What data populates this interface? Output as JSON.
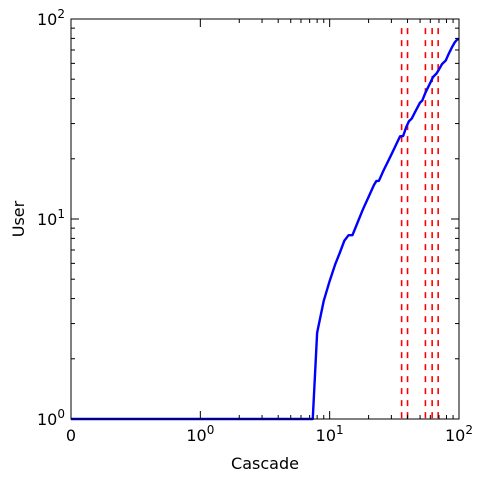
{
  "chart_data": {
    "type": "line",
    "title": "",
    "xlabel": "Cascade",
    "ylabel": "User",
    "xscale": "symlog",
    "yscale": "log",
    "xlim": [
      0,
      100
    ],
    "ylim": [
      1,
      100
    ],
    "grid": false,
    "legend": "none",
    "x_ticks": [
      {
        "value": 0,
        "base": "0",
        "exp": ""
      },
      {
        "value": 1,
        "base": "10",
        "exp": "0"
      },
      {
        "value": 10,
        "base": "10",
        "exp": "1"
      },
      {
        "value": 100,
        "base": "10",
        "exp": "2"
      }
    ],
    "y_ticks": [
      {
        "value": 1,
        "base": "10",
        "exp": "0"
      },
      {
        "value": 10,
        "base": "10",
        "exp": "1"
      },
      {
        "value": 100,
        "base": "10",
        "exp": "2"
      }
    ],
    "series": [
      {
        "color": "#0000ff",
        "points": [
          [
            0,
            1.0
          ],
          [
            7.4,
            1.0
          ],
          [
            8.0,
            2.7
          ],
          [
            9.0,
            3.9
          ],
          [
            10.0,
            4.9
          ],
          [
            11.0,
            5.9
          ],
          [
            12.0,
            6.8
          ],
          [
            13.0,
            7.8
          ],
          [
            14.0,
            8.3
          ],
          [
            15.0,
            8.3
          ],
          [
            16.0,
            9.2
          ],
          [
            18.0,
            11.1
          ],
          [
            20.0,
            12.9
          ],
          [
            22.0,
            14.8
          ],
          [
            23.0,
            15.5
          ],
          [
            24.0,
            15.5
          ],
          [
            26.0,
            17.4
          ],
          [
            30.0,
            21.0
          ],
          [
            35.0,
            25.9
          ],
          [
            37.0,
            26.0
          ],
          [
            39.0,
            28.7
          ],
          [
            41.0,
            30.8
          ],
          [
            43.0,
            31.7
          ],
          [
            46.0,
            34.5
          ],
          [
            50.0,
            38.2
          ],
          [
            52.0,
            39.1
          ],
          [
            55.0,
            42.8
          ],
          [
            60.0,
            48.0
          ],
          [
            63.0,
            51.3
          ],
          [
            67.0,
            53.4
          ],
          [
            70.0,
            55.9
          ],
          [
            74.0,
            59.6
          ],
          [
            79.0,
            62.0
          ],
          [
            83.0,
            66.7
          ],
          [
            88.0,
            72.0
          ],
          [
            93.0,
            76.6
          ],
          [
            97.0,
            79.1
          ],
          [
            100.0,
            79.1
          ]
        ]
      }
    ],
    "vlines": {
      "color": "#ff0000",
      "style": "dashed",
      "x": [
        36,
        40,
        55,
        62,
        69
      ]
    }
  }
}
